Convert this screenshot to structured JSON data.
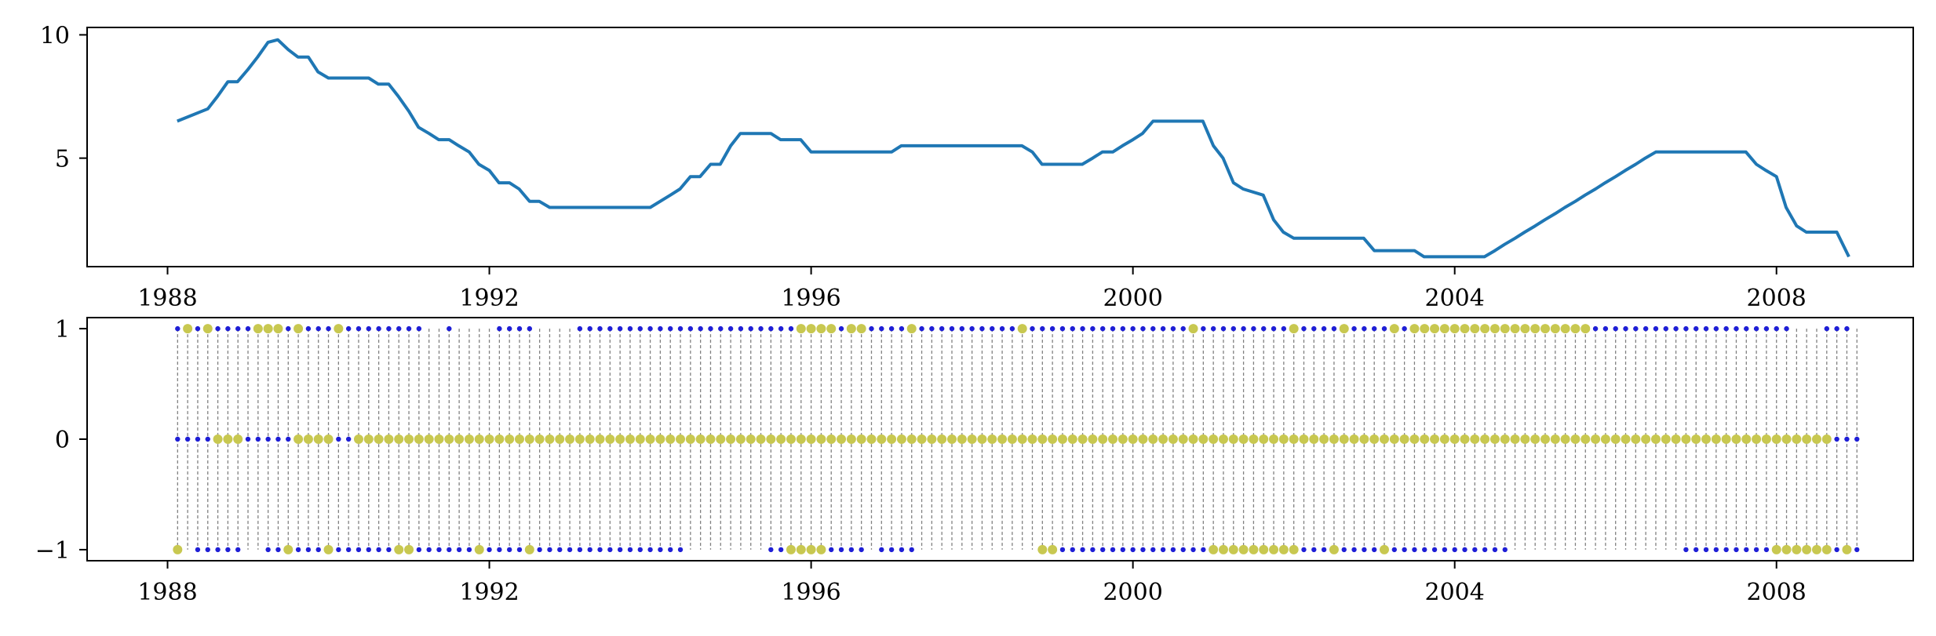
{
  "chart_data": [
    {
      "type": "line",
      "title": "",
      "xlabel": "",
      "ylabel": "",
      "xlim": [
        1987.0,
        2009.7
      ],
      "ylim": [
        0.6,
        10.3
      ],
      "x_ticks": [
        1988,
        1992,
        1996,
        2000,
        2004,
        2008
      ],
      "x_tick_labels": [
        "1988",
        "1992",
        "1996",
        "2000",
        "2004",
        "2008"
      ],
      "y_ticks": [
        5,
        10
      ],
      "y_tick_labels": [
        "5",
        "10"
      ],
      "grid": false,
      "legend": "none",
      "color": "#1f77b4",
      "x": [
        1988.12,
        1988.5,
        1988.62,
        1988.75,
        1988.87,
        1989.0,
        1989.12,
        1989.25,
        1989.37,
        1989.5,
        1989.62,
        1989.75,
        1989.87,
        1990.0,
        1990.5,
        1990.62,
        1990.75,
        1990.87,
        1991.0,
        1991.12,
        1991.25,
        1991.37,
        1991.5,
        1991.62,
        1991.75,
        1991.87,
        1992.0,
        1992.12,
        1992.25,
        1992.37,
        1992.5,
        1992.62,
        1992.75,
        1992.87,
        1993.0,
        1994.0,
        1994.25,
        1994.37,
        1994.5,
        1994.62,
        1994.75,
        1994.87,
        1995.0,
        1995.12,
        1995.5,
        1995.62,
        1995.87,
        1996.0,
        1997.0,
        1997.12,
        1998.62,
        1998.75,
        1998.87,
        1999.37,
        1999.5,
        1999.62,
        1999.75,
        1999.87,
        2000.0,
        2000.12,
        2000.25,
        2000.37,
        2000.87,
        2001.0,
        2001.12,
        2001.25,
        2001.37,
        2001.62,
        2001.75,
        2001.87,
        2002.0,
        2002.87,
        2003.0,
        2003.5,
        2003.62,
        2004.37,
        2004.5,
        2004.62,
        2004.75,
        2004.87,
        2005.0,
        2005.12,
        2005.25,
        2005.37,
        2005.5,
        2005.62,
        2005.75,
        2005.87,
        2006.0,
        2006.12,
        2006.25,
        2006.37,
        2006.5,
        2007.62,
        2007.75,
        2007.87,
        2008.0,
        2008.12,
        2008.25,
        2008.37,
        2008.75,
        2008.9
      ],
      "values": [
        6.5,
        7.0,
        7.5,
        8.1,
        8.1,
        8.6,
        9.1,
        9.7,
        9.8,
        9.4,
        9.1,
        9.1,
        8.5,
        8.25,
        8.25,
        8.0,
        8.0,
        7.5,
        6.9,
        6.25,
        6.0,
        5.75,
        5.75,
        5.5,
        5.25,
        4.75,
        4.5,
        4.0,
        4.0,
        3.75,
        3.25,
        3.25,
        3.0,
        3.0,
        3.0,
        3.0,
        3.5,
        3.75,
        4.25,
        4.25,
        4.75,
        4.75,
        5.5,
        6.0,
        6.0,
        5.75,
        5.75,
        5.25,
        5.25,
        5.5,
        5.5,
        5.25,
        4.75,
        4.75,
        5.0,
        5.25,
        5.25,
        5.5,
        5.75,
        6.0,
        6.5,
        6.5,
        6.5,
        5.5,
        5.0,
        4.0,
        3.75,
        3.5,
        2.5,
        2.0,
        1.75,
        1.75,
        1.25,
        1.25,
        1.0,
        1.0,
        1.25,
        1.5,
        1.75,
        2.0,
        2.25,
        2.5,
        2.75,
        3.0,
        3.25,
        3.5,
        3.75,
        4.0,
        4.25,
        4.5,
        4.75,
        5.0,
        5.25,
        5.25,
        4.75,
        4.5,
        4.25,
        3.0,
        2.25,
        2.0,
        2.0,
        1.0
      ]
    },
    {
      "type": "scatter",
      "title": "",
      "xlabel": "",
      "ylabel": "",
      "xlim": [
        1987.0,
        2009.7
      ],
      "ylim": [
        -1.1,
        1.1
      ],
      "x_ticks": [
        1988,
        1992,
        1996,
        2000,
        2004,
        2008
      ],
      "x_tick_labels": [
        "1988",
        "1992",
        "1996",
        "2000",
        "2004",
        "2008"
      ],
      "y_ticks": [
        -1,
        0,
        1
      ],
      "y_tick_labels": [
        "−1",
        "0",
        "1"
      ],
      "grid": false,
      "legend": "none",
      "meeting_lines": "dashed vertical line at each date, grey",
      "marker_colors": {
        "blue": "#1f1fd6",
        "yellow": "#c8c850"
      },
      "dates_start": 1988.125,
      "dates_step": 0.125,
      "dates_count": 168,
      "markers_yellow": {
        "1": [
          1,
          3,
          8,
          9,
          10,
          12,
          16,
          62,
          63,
          64,
          65,
          67,
          68,
          73,
          84,
          101,
          111,
          116,
          121,
          123,
          124,
          125,
          126,
          127,
          128,
          129,
          130,
          131,
          132,
          133,
          134,
          135,
          136,
          137,
          138,
          139,
          140
        ],
        "0": [
          4,
          5,
          6,
          12,
          13,
          14,
          15,
          18,
          19,
          20,
          21,
          22,
          23,
          24,
          25,
          26,
          27,
          28,
          29,
          30,
          31,
          32,
          33,
          34,
          35,
          36,
          37,
          38,
          39,
          40,
          41,
          42,
          43,
          44,
          45,
          46,
          47,
          48,
          49,
          50,
          51,
          52,
          53,
          54,
          55,
          56,
          57,
          58,
          59,
          60,
          61,
          62,
          63,
          64,
          65,
          66,
          67,
          68,
          69,
          70,
          71,
          72,
          73,
          74,
          75,
          76,
          77,
          78,
          79,
          80,
          81,
          82,
          83,
          84,
          85,
          86,
          87,
          88,
          89,
          90,
          91,
          92,
          93,
          94,
          95,
          96,
          97,
          98,
          99,
          100,
          101,
          102,
          103,
          104,
          105,
          106,
          107,
          108,
          109,
          110,
          111,
          112,
          113,
          114,
          115,
          116,
          117,
          118,
          119,
          120,
          121,
          122,
          123,
          124,
          125,
          126,
          127,
          128,
          129,
          130,
          131,
          132,
          133,
          134,
          135,
          136,
          137,
          138,
          139,
          140,
          141,
          142,
          143,
          144,
          145,
          146,
          147,
          148,
          149,
          150,
          151,
          152,
          153,
          154,
          155,
          156,
          157,
          158,
          159,
          160,
          161,
          162,
          163,
          164
        ],
        "-1": [
          0,
          11,
          15,
          22,
          23,
          30,
          35,
          61,
          62,
          63,
          64,
          86,
          87,
          103,
          104,
          105,
          106,
          107,
          108,
          109,
          110,
          111,
          115,
          120,
          159,
          160,
          161,
          162,
          163,
          164,
          166
        ]
      },
      "markers_blue": {
        "1": [
          0,
          2,
          4,
          5,
          6,
          7,
          11,
          13,
          14,
          15,
          17,
          18,
          19,
          20,
          21,
          22,
          23,
          24,
          27,
          32,
          33,
          34,
          35,
          40,
          41,
          42,
          43,
          44,
          45,
          46,
          47,
          48,
          49,
          50,
          51,
          52,
          53,
          54,
          55,
          56,
          57,
          58,
          59,
          60,
          61,
          66,
          69,
          70,
          71,
          72,
          74,
          75,
          76,
          77,
          78,
          79,
          80,
          81,
          82,
          83,
          85,
          86,
          87,
          88,
          89,
          90,
          91,
          92,
          93,
          94,
          95,
          96,
          97,
          98,
          99,
          100,
          102,
          103,
          104,
          105,
          106,
          107,
          108,
          109,
          110,
          112,
          113,
          114,
          115,
          117,
          118,
          119,
          120,
          122,
          141,
          142,
          143,
          144,
          145,
          146,
          147,
          148,
          149,
          150,
          151,
          152,
          153,
          154,
          155,
          156,
          157,
          158,
          159,
          160,
          164,
          165,
          166
        ],
        "0": [
          0,
          1,
          2,
          3,
          7,
          8,
          9,
          10,
          11,
          16,
          17,
          165,
          166,
          167
        ],
        "-1": [
          2,
          3,
          4,
          5,
          6,
          9,
          10,
          12,
          13,
          14,
          16,
          17,
          18,
          19,
          20,
          21,
          24,
          25,
          26,
          27,
          28,
          29,
          31,
          32,
          33,
          34,
          36,
          37,
          38,
          39,
          40,
          41,
          42,
          43,
          44,
          45,
          46,
          47,
          48,
          49,
          50,
          59,
          60,
          65,
          66,
          67,
          68,
          70,
          71,
          72,
          73,
          88,
          89,
          90,
          91,
          92,
          93,
          94,
          95,
          96,
          97,
          98,
          99,
          100,
          101,
          102,
          112,
          113,
          114,
          116,
          117,
          118,
          119,
          121,
          122,
          123,
          124,
          125,
          126,
          127,
          128,
          129,
          130,
          131,
          132,
          150,
          151,
          152,
          153,
          154,
          155,
          156,
          157,
          158,
          165,
          167
        ]
      }
    }
  ]
}
